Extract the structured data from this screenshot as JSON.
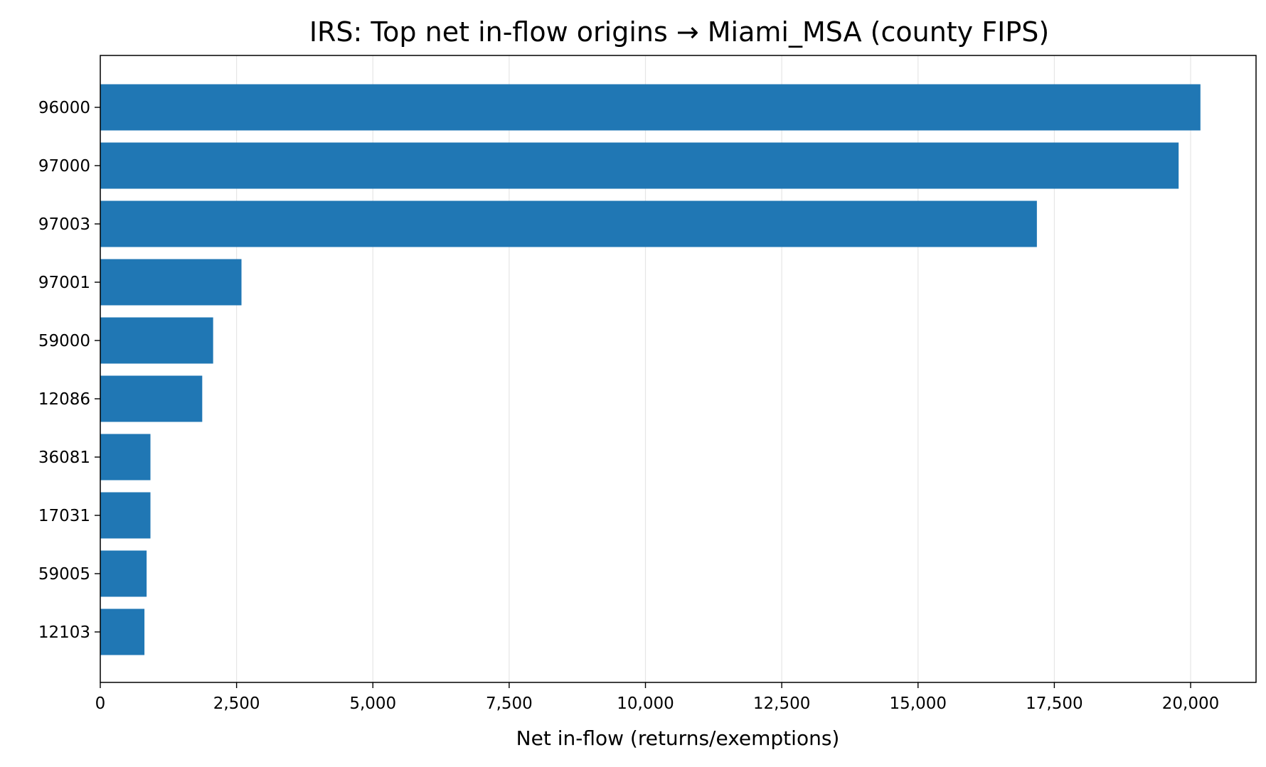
{
  "chart_data": {
    "type": "bar",
    "orientation": "horizontal",
    "title": "IRS: Top net in-flow origins → Miami_MSA (county FIPS)",
    "xlabel": "Net in-flow (returns/exemptions)",
    "ylabel": "",
    "categories": [
      "96000",
      "97000",
      "97003",
      "97001",
      "59000",
      "12086",
      "36081",
      "17031",
      "59005",
      "12103"
    ],
    "values": [
      20180,
      19780,
      17180,
      2590,
      2070,
      1870,
      920,
      920,
      850,
      810
    ],
    "xlim": [
      0,
      21200
    ],
    "xticks": [
      0,
      2500,
      5000,
      7500,
      10000,
      12500,
      15000,
      17500,
      20000
    ],
    "xtick_labels": [
      "0",
      "2,500",
      "5,000",
      "7,500",
      "10,000",
      "12,500",
      "15,000",
      "17,500",
      "20,000"
    ],
    "grid": "vertical",
    "bar_color": "#2077b4",
    "grid_color": "#e6e6e6"
  }
}
